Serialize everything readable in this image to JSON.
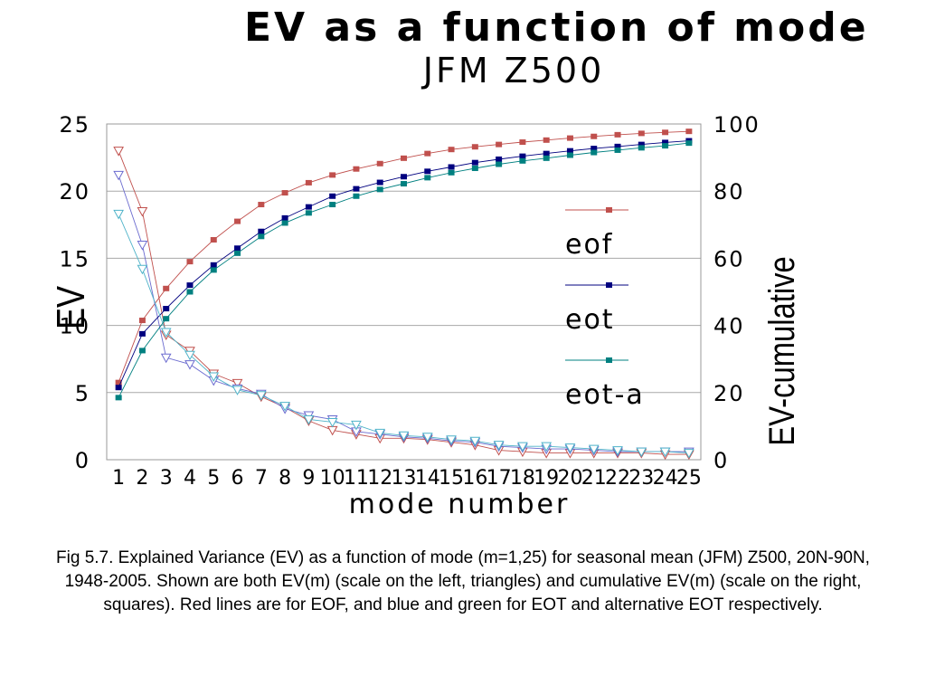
{
  "chart_data": {
    "type": "line",
    "title": "EV as a function of mode",
    "subtitle": "JFM Z500",
    "xlabel": "mode number",
    "ylabel_left": "EV",
    "ylabel_right": "EV-cumulative",
    "categories": [
      "1",
      "2",
      "3",
      "4",
      "5",
      "6",
      "7",
      "8",
      "9",
      "10",
      "11",
      "12",
      "13",
      "14",
      "15",
      "16",
      "17",
      "18",
      "19",
      "20",
      "21",
      "22",
      "23",
      "24",
      "25"
    ],
    "ylim_left": [
      0,
      25
    ],
    "yticks_left": [
      "0",
      "5",
      "10",
      "15",
      "20",
      "25"
    ],
    "ylim_right": [
      0,
      100
    ],
    "yticks_right": [
      "0",
      "20",
      "40",
      "60",
      "80",
      "100"
    ],
    "grid": true,
    "legend_position": "right",
    "series": [
      {
        "name": "eof",
        "axis": "left",
        "marker": "triangle",
        "color": "#c0504d",
        "values": [
          23.0,
          18.5,
          9.3,
          8.1,
          6.4,
          5.7,
          4.7,
          3.9,
          2.9,
          2.2,
          1.9,
          1.6,
          1.6,
          1.5,
          1.3,
          1.1,
          0.7,
          0.6,
          0.5,
          0.5,
          0.5,
          0.5,
          0.5,
          0.4,
          0.4
        ]
      },
      {
        "name": "eof",
        "axis": "right",
        "marker": "square",
        "color": "#c0504d",
        "values": [
          23,
          41.5,
          51,
          59,
          65.5,
          71,
          76,
          79.5,
          82.5,
          84.8,
          86.6,
          88.2,
          89.8,
          91.2,
          92.4,
          93.2,
          93.9,
          94.6,
          95.2,
          95.8,
          96.3,
          96.8,
          97.2,
          97.5,
          97.8
        ]
      },
      {
        "name": "eot",
        "axis": "left",
        "marker": "triangle",
        "color": "#6b6bcf",
        "values": [
          21.2,
          16.0,
          7.6,
          7.1,
          5.9,
          5.3,
          4.9,
          3.8,
          3.3,
          3.0,
          2.1,
          1.9,
          1.7,
          1.6,
          1.4,
          1.3,
          1.0,
          0.9,
          0.8,
          0.8,
          0.7,
          0.6,
          0.6,
          0.6,
          0.6
        ]
      },
      {
        "name": "eot",
        "axis": "right",
        "marker": "square",
        "color": "#00007f",
        "values": [
          21.5,
          37.5,
          45,
          52,
          58,
          63,
          68,
          72,
          75.3,
          78.5,
          80.7,
          82.6,
          84.3,
          85.9,
          87.2,
          88.5,
          89.5,
          90.4,
          91.2,
          92,
          92.7,
          93.3,
          93.9,
          94.5,
          95
        ]
      },
      {
        "name": "eot-a",
        "axis": "left",
        "marker": "triangle",
        "color": "#4fb3c9",
        "values": [
          18.3,
          14.2,
          9.5,
          7.8,
          6.2,
          5.2,
          4.8,
          4.0,
          3.0,
          2.8,
          2.6,
          2.0,
          1.8,
          1.7,
          1.5,
          1.4,
          1.1,
          1.0,
          1.0,
          0.9,
          0.8,
          0.7,
          0.6,
          0.6,
          0.5
        ]
      },
      {
        "name": "eot-a",
        "axis": "right",
        "marker": "square",
        "color": "#008080",
        "values": [
          18.5,
          32.5,
          42,
          50,
          56.5,
          61.5,
          66.5,
          70.5,
          73.5,
          76,
          78.5,
          80.5,
          82.2,
          84,
          85.5,
          86.8,
          88,
          89,
          89.8,
          90.7,
          91.5,
          92.2,
          92.9,
          93.5,
          94.3
        ]
      }
    ],
    "legend": [
      {
        "label": "eof",
        "color": "#c0504d"
      },
      {
        "label": "eot",
        "color": "#00007f"
      },
      {
        "label": "eot-a",
        "color": "#008080"
      }
    ]
  },
  "caption": "Fig 5.7. Explained Variance (EV) as a function of mode (m=1,25) for seasonal mean (JFM) Z500, 20N-90N, 1948-2005. Shown are both EV(m) (scale on the left, triangles) and cumulative EV(m) (scale on the right, squares). Red lines are for EOF, and blue and green for EOT and alternative EOT respectively."
}
